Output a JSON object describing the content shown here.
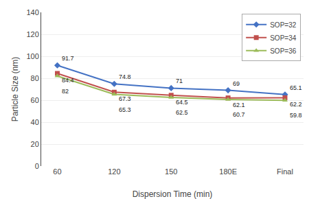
{
  "chart_data": {
    "type": "line",
    "categories": [
      "60",
      "120",
      "150",
      "180E",
      "Final"
    ],
    "series": [
      {
        "name": "SOP=32",
        "color": "#4472C4",
        "marker": "diamond",
        "values": [
          91.7,
          74.8,
          71,
          69,
          65.1
        ]
      },
      {
        "name": "SOP=34",
        "color": "#C0504D",
        "marker": "square",
        "values": [
          84.4,
          67.3,
          64.5,
          62.1,
          62.2
        ]
      },
      {
        "name": "SOP=36",
        "color": "#9BBB59",
        "marker": "triangle-up",
        "values": [
          82,
          65.3,
          62.5,
          60.7,
          59.8
        ]
      }
    ],
    "xlabel": "Dispersion Time (min)",
    "ylabel": "Particle Size (nm)",
    "ylim": [
      0,
      140
    ],
    "yticks": [
      0,
      20,
      40,
      60,
      80,
      100,
      120,
      140
    ],
    "grid": true,
    "legend": "upper right",
    "data_labels": true
  }
}
